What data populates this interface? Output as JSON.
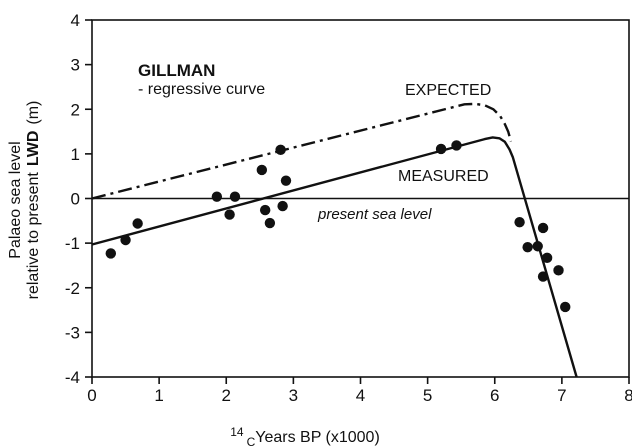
{
  "chart_data": {
    "type": "scatter",
    "title": "GILLMAN",
    "subtitle": "- regressive curve",
    "xlabel": {
      "superscript": "14",
      "subscript": "C",
      "text": "Years BP (x1000)"
    },
    "ylabel": {
      "line1": "Palaeo sea level",
      "line2_prefix": "relative to present",
      "line2_bold": "LWD",
      "line2_suffix": "(m)"
    },
    "xlim": [
      0,
      8
    ],
    "ylim": [
      -4,
      4
    ],
    "xticks": [
      0,
      1,
      2,
      3,
      4,
      5,
      6,
      7,
      8
    ],
    "yticks": [
      -4,
      -3,
      -2,
      -1,
      0,
      1,
      2,
      3,
      4
    ],
    "grid": false,
    "points": [
      {
        "x": 0.28,
        "y": -1.23
      },
      {
        "x": 0.5,
        "y": -0.93
      },
      {
        "x": 0.68,
        "y": -0.56
      },
      {
        "x": 1.86,
        "y": 0.04
      },
      {
        "x": 2.05,
        "y": -0.36
      },
      {
        "x": 2.13,
        "y": 0.04
      },
      {
        "x": 2.53,
        "y": 0.64
      },
      {
        "x": 2.58,
        "y": -0.26
      },
      {
        "x": 2.65,
        "y": -0.55
      },
      {
        "x": 2.81,
        "y": 1.09
      },
      {
        "x": 2.84,
        "y": -0.17
      },
      {
        "x": 2.89,
        "y": 0.4
      },
      {
        "x": 5.2,
        "y": 1.11
      },
      {
        "x": 5.43,
        "y": 1.19
      },
      {
        "x": 6.37,
        "y": -0.53
      },
      {
        "x": 6.49,
        "y": -1.09
      },
      {
        "x": 6.64,
        "y": -1.07
      },
      {
        "x": 6.72,
        "y": -0.66
      },
      {
        "x": 6.72,
        "y": -1.75
      },
      {
        "x": 6.78,
        "y": -1.33
      },
      {
        "x": 6.95,
        "y": -1.61
      },
      {
        "x": 7.05,
        "y": -2.43
      }
    ],
    "series": [
      {
        "name": "EXPECTED",
        "style": "dash-dot",
        "points": [
          [
            0,
            0
          ],
          [
            5.55,
            2.11
          ],
          [
            5.7,
            2.12
          ],
          [
            5.85,
            2.09
          ],
          [
            5.98,
            2.0
          ],
          [
            6.08,
            1.85
          ],
          [
            6.15,
            1.67
          ],
          [
            6.2,
            1.5
          ],
          [
            6.24,
            1.28
          ]
        ]
      },
      {
        "name": "MEASURED",
        "style": "solid",
        "points": [
          [
            0,
            -1.03
          ],
          [
            5.85,
            1.33
          ],
          [
            5.97,
            1.37
          ],
          [
            6.07,
            1.35
          ],
          [
            6.15,
            1.27
          ],
          [
            6.22,
            1.1
          ],
          [
            6.27,
            0.92
          ],
          [
            7.22,
            -4.0
          ]
        ]
      }
    ],
    "reference_line": {
      "y": 0,
      "label": "present sea level"
    },
    "annotations": {
      "expected": "EXPECTED",
      "measured": "MEASURED"
    }
  }
}
